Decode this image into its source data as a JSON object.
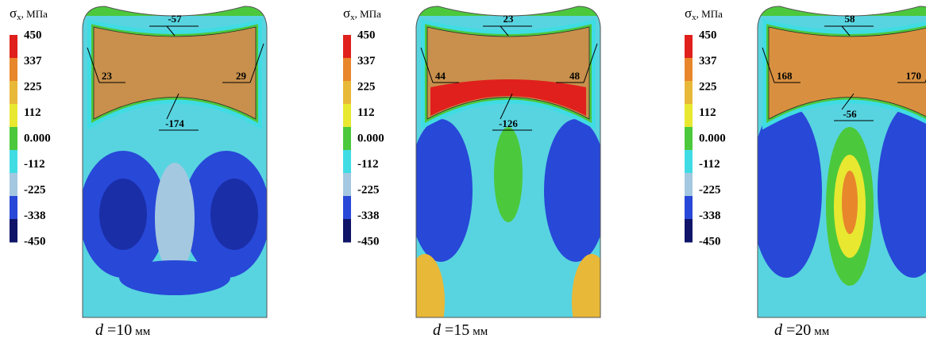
{
  "panels": [
    {
      "legend": {
        "title": {
          "symbol": "σ",
          "subscript": "x",
          "unit": ", МПа"
        },
        "levels": [
          "450",
          "337",
          "225",
          "112",
          "0.000",
          "-112",
          "-225",
          "-338",
          "-450"
        ],
        "colors": [
          "#e0201c",
          "#e8862c",
          "#e8b838",
          "#e8e830",
          "#4cc83c",
          "#40dce4",
          "#a4c8e0",
          "#2848d8",
          "#101468"
        ]
      },
      "annotations": {
        "top": "-57",
        "left": "23",
        "right": "29",
        "bottom": "-174"
      },
      "caption": {
        "variable": "d",
        "value": "=10",
        "unit": "мм"
      }
    },
    {
      "legend": {
        "title": {
          "symbol": "σ",
          "subscript": "x",
          "unit": ", МПа"
        },
        "levels": [
          "450",
          "337",
          "225",
          "112",
          "0.000",
          "-112",
          "-225",
          "-338",
          "-450"
        ],
        "colors": [
          "#e0201c",
          "#e8862c",
          "#e8b838",
          "#e8e830",
          "#4cc83c",
          "#40dce4",
          "#a4c8e0",
          "#2848d8",
          "#101468"
        ]
      },
      "annotations": {
        "top": "23",
        "left": "44",
        "right": "48",
        "bottom": "-126"
      },
      "caption": {
        "variable": "d",
        "value": "=15",
        "unit": "мм"
      }
    },
    {
      "legend": {
        "title": {
          "symbol": "σ",
          "subscript": "x",
          "unit": ", МПа"
        },
        "levels": [
          "450",
          "337",
          "225",
          "112",
          "0.000",
          "-112",
          "-225",
          "-338",
          "-450"
        ],
        "colors": [
          "#e0201c",
          "#e8862c",
          "#e8b838",
          "#e8e830",
          "#4cc83c",
          "#40dce4",
          "#a4c8e0",
          "#2848d8",
          "#101468"
        ]
      },
      "annotations": {
        "top": "58",
        "left": "168",
        "right": "170",
        "bottom": "-56"
      },
      "caption": {
        "variable": "d",
        "value": "=20",
        "unit": "мм"
      }
    }
  ]
}
